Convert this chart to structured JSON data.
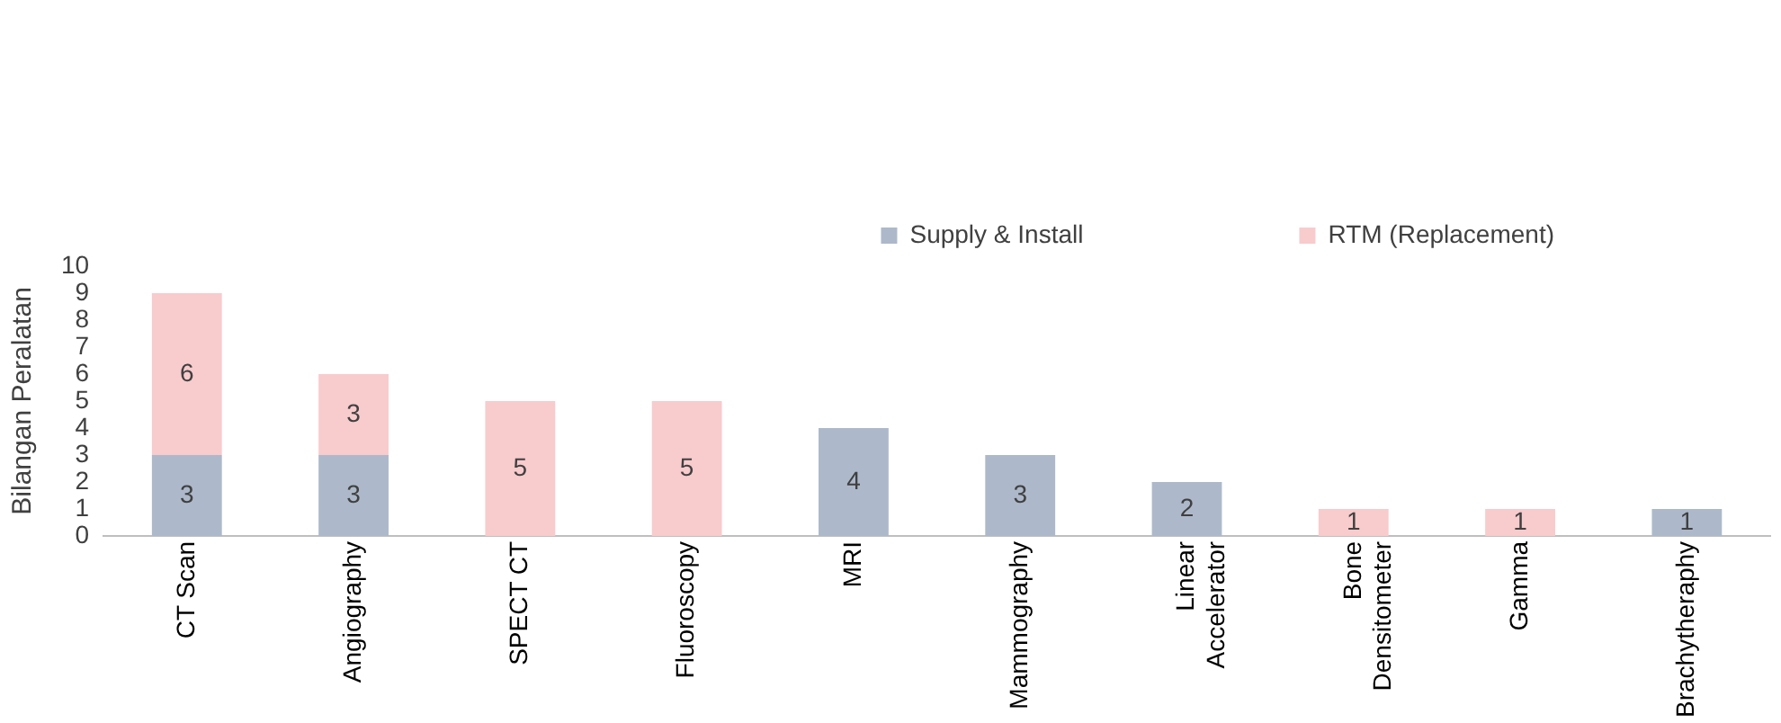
{
  "chart_data": {
    "type": "bar",
    "stacked": true,
    "ylabel": "Bilangan Peralatan",
    "categories": [
      "CT Scan",
      "Angiography",
      "SPECT CT",
      "Fluoroscopy",
      "MRI",
      "Mammography",
      "Linear Accelerator",
      "Bone Densitometer",
      "Gamma",
      "Brachytheraphy"
    ],
    "series": [
      {
        "name": "Supply & Install",
        "color": "#adb9ca",
        "values": [
          3,
          3,
          null,
          null,
          4,
          3,
          2,
          null,
          null,
          1
        ]
      },
      {
        "name": "RTM (Replacement)",
        "color": "#f8cbcd",
        "values": [
          6,
          3,
          5,
          5,
          null,
          null,
          null,
          1,
          1,
          null
        ]
      }
    ],
    "ylim": [
      0,
      10
    ],
    "yticks": [
      0,
      1,
      2,
      3,
      4,
      5,
      6,
      7,
      8,
      9,
      10
    ],
    "grid": false,
    "legend": "top right",
    "data_labels": true
  }
}
